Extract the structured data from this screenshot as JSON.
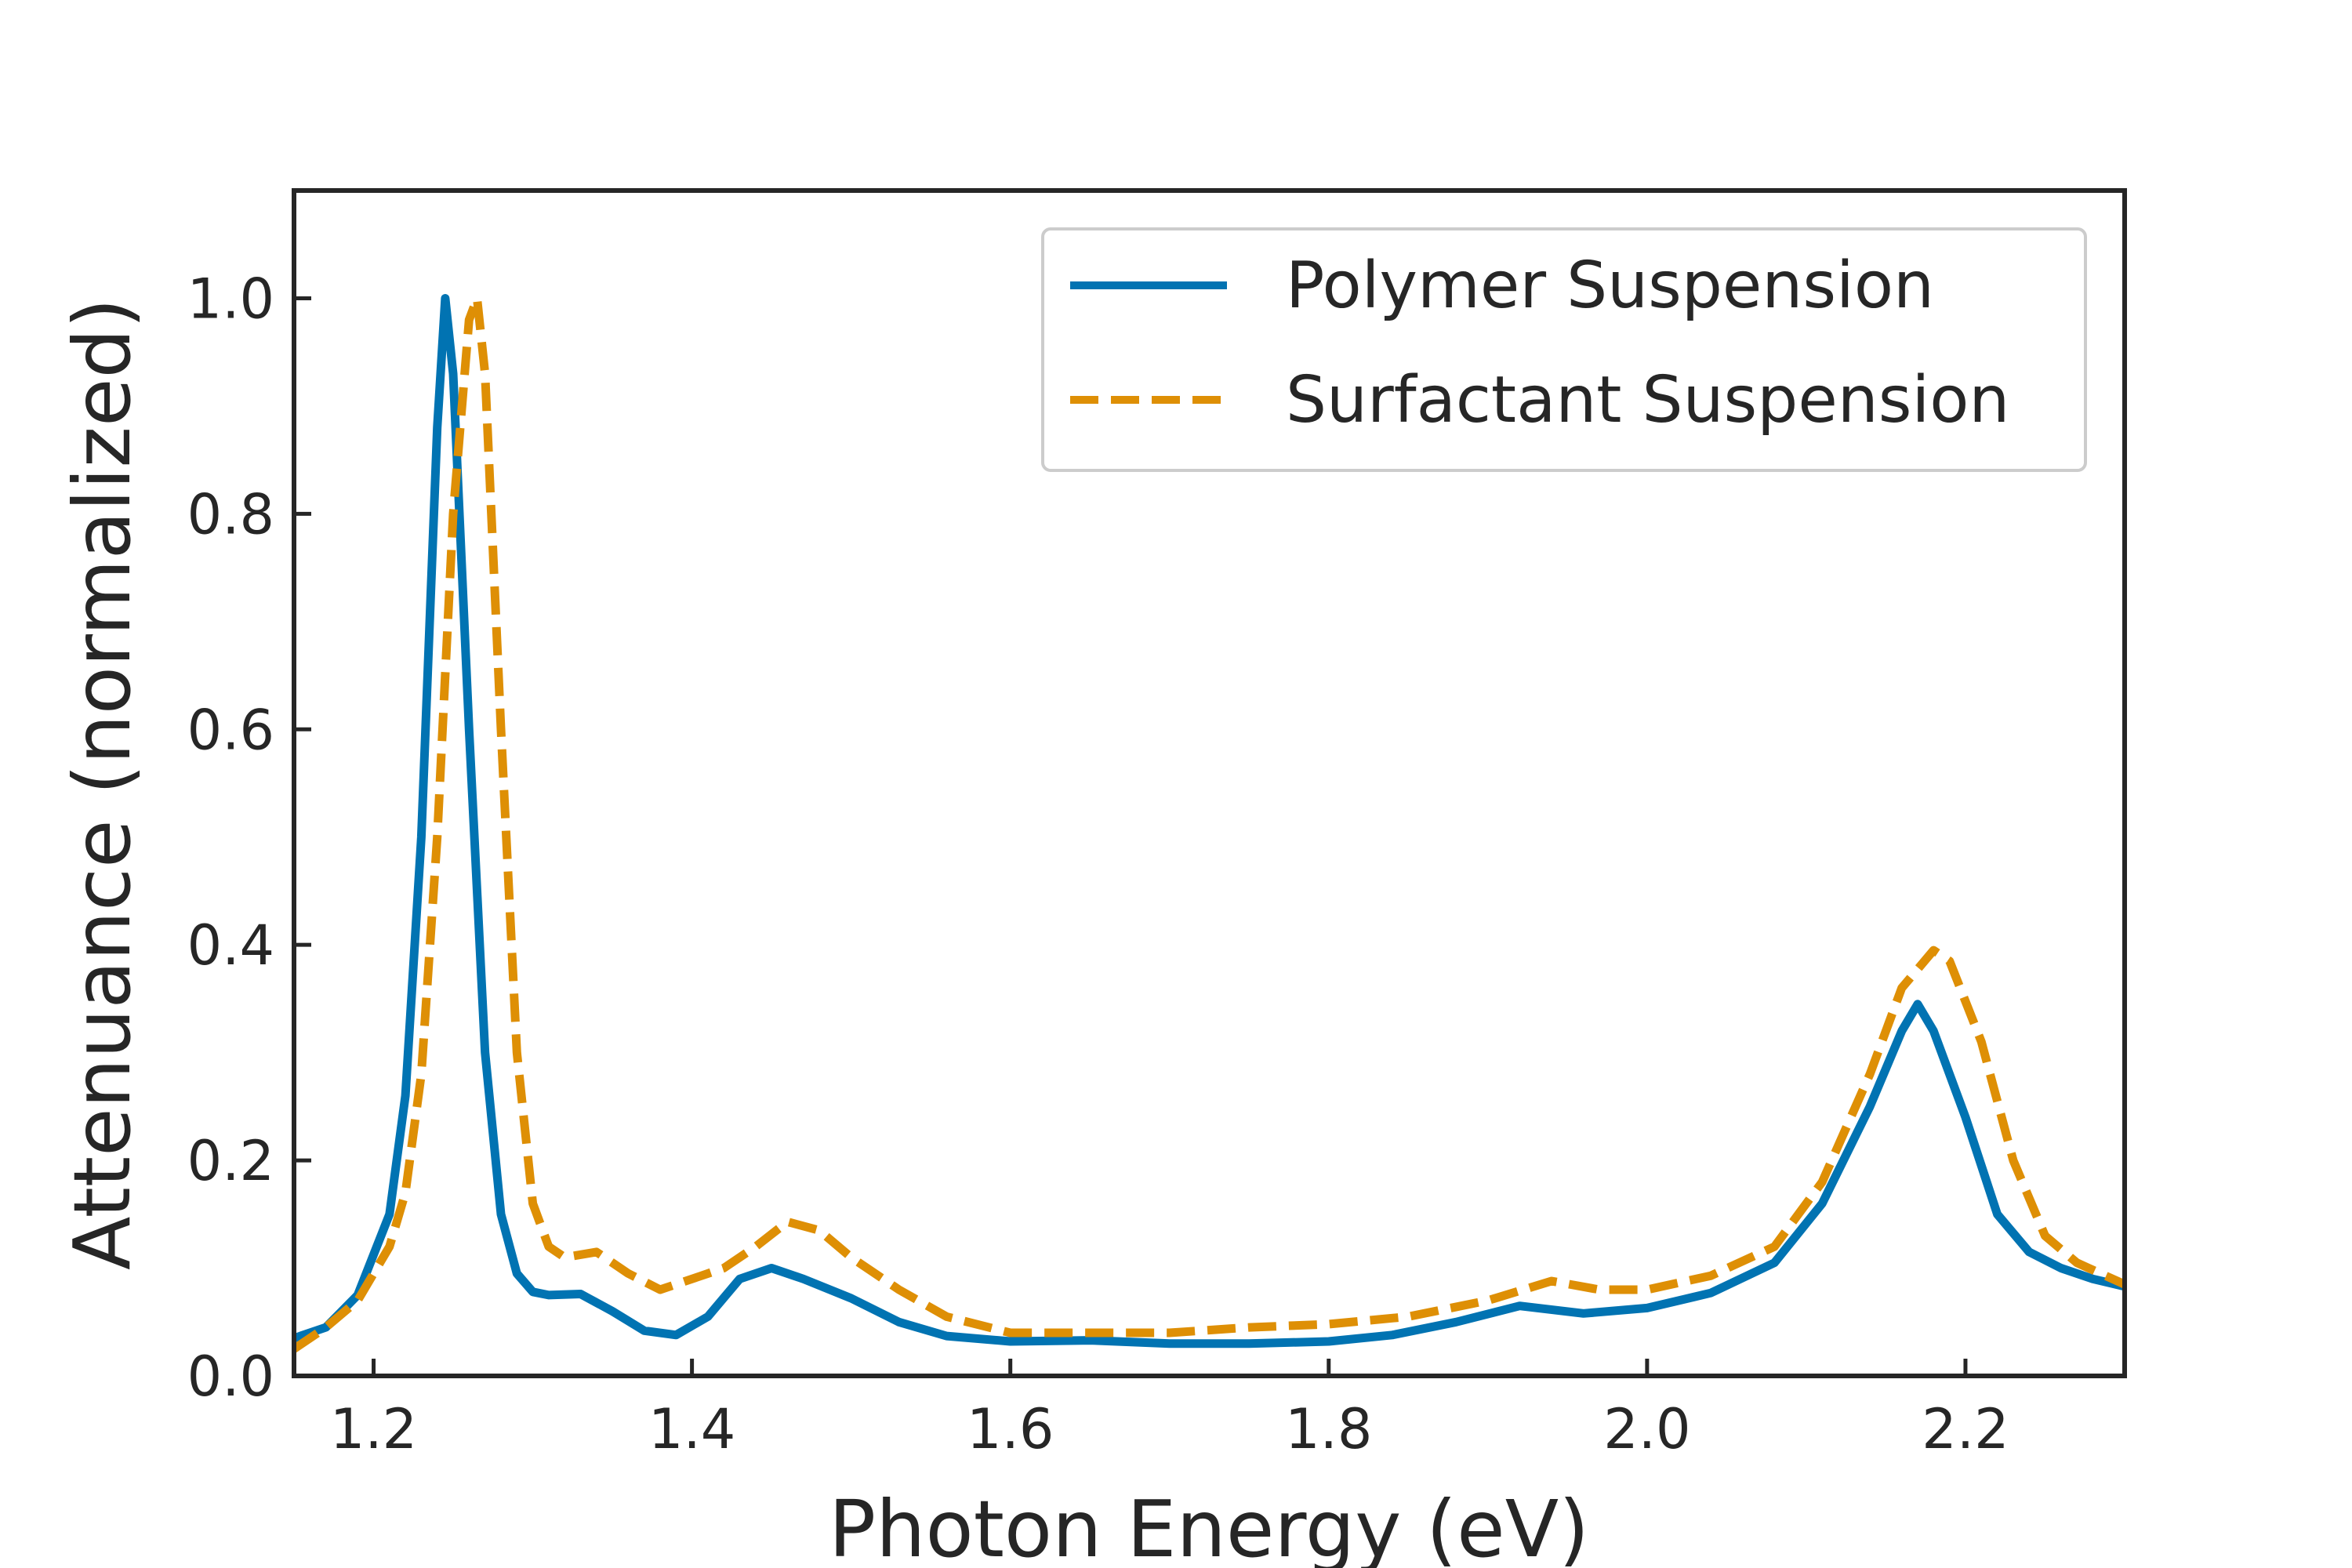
{
  "chart_data": {
    "type": "line",
    "title": "",
    "xlabel": "Photon Energy (eV)",
    "ylabel": "Attenuance (normalized)",
    "xlim": [
      1.15,
      2.3
    ],
    "ylim": [
      0.0,
      1.1
    ],
    "xticks": [
      1.2,
      1.4,
      1.6,
      1.8,
      2.0,
      2.2
    ],
    "xtick_labels": [
      "1.2",
      "1.4",
      "1.6",
      "1.8",
      "2.0",
      "2.2"
    ],
    "yticks": [
      0.0,
      0.2,
      0.4,
      0.6,
      0.8,
      1.0
    ],
    "ytick_labels": [
      "0.0",
      "0.2",
      "0.4",
      "0.6",
      "0.8",
      "1.0"
    ],
    "grid": false,
    "legend_position": "top-right",
    "series": [
      {
        "name": "Polymer Suspension",
        "color": "#0173b2",
        "style": "solid",
        "points": [
          [
            1.15,
            0.035
          ],
          [
            1.17,
            0.045
          ],
          [
            1.19,
            0.075
          ],
          [
            1.21,
            0.15
          ],
          [
            1.22,
            0.26
          ],
          [
            1.23,
            0.5
          ],
          [
            1.24,
            0.88
          ],
          [
            1.245,
            1.0
          ],
          [
            1.25,
            0.93
          ],
          [
            1.26,
            0.6
          ],
          [
            1.27,
            0.3
          ],
          [
            1.28,
            0.15
          ],
          [
            1.29,
            0.095
          ],
          [
            1.3,
            0.078
          ],
          [
            1.31,
            0.075
          ],
          [
            1.33,
            0.076
          ],
          [
            1.35,
            0.06
          ],
          [
            1.37,
            0.042
          ],
          [
            1.39,
            0.038
          ],
          [
            1.41,
            0.055
          ],
          [
            1.43,
            0.09
          ],
          [
            1.45,
            0.1
          ],
          [
            1.47,
            0.09
          ],
          [
            1.5,
            0.072
          ],
          [
            1.53,
            0.05
          ],
          [
            1.56,
            0.037
          ],
          [
            1.6,
            0.032
          ],
          [
            1.65,
            0.033
          ],
          [
            1.7,
            0.03
          ],
          [
            1.75,
            0.03
          ],
          [
            1.8,
            0.032
          ],
          [
            1.84,
            0.038
          ],
          [
            1.88,
            0.05
          ],
          [
            1.92,
            0.065
          ],
          [
            1.96,
            0.058
          ],
          [
            2.0,
            0.063
          ],
          [
            2.04,
            0.077
          ],
          [
            2.08,
            0.105
          ],
          [
            2.11,
            0.16
          ],
          [
            2.14,
            0.25
          ],
          [
            2.16,
            0.32
          ],
          [
            2.17,
            0.345
          ],
          [
            2.18,
            0.32
          ],
          [
            2.2,
            0.24
          ],
          [
            2.22,
            0.15
          ],
          [
            2.24,
            0.115
          ],
          [
            2.26,
            0.1
          ],
          [
            2.28,
            0.09
          ],
          [
            2.3,
            0.083
          ]
        ]
      },
      {
        "name": "Surfactant Suspension",
        "color": "#de8f05",
        "style": "dashed",
        "points": [
          [
            1.15,
            0.025
          ],
          [
            1.17,
            0.045
          ],
          [
            1.19,
            0.07
          ],
          [
            1.21,
            0.12
          ],
          [
            1.22,
            0.17
          ],
          [
            1.23,
            0.28
          ],
          [
            1.24,
            0.5
          ],
          [
            1.25,
            0.8
          ],
          [
            1.26,
            0.98
          ],
          [
            1.265,
            1.0
          ],
          [
            1.27,
            0.93
          ],
          [
            1.28,
            0.6
          ],
          [
            1.29,
            0.3
          ],
          [
            1.3,
            0.16
          ],
          [
            1.31,
            0.12
          ],
          [
            1.32,
            0.11
          ],
          [
            1.34,
            0.115
          ],
          [
            1.36,
            0.095
          ],
          [
            1.38,
            0.08
          ],
          [
            1.4,
            0.09
          ],
          [
            1.42,
            0.1
          ],
          [
            1.44,
            0.12
          ],
          [
            1.46,
            0.143
          ],
          [
            1.48,
            0.135
          ],
          [
            1.5,
            0.11
          ],
          [
            1.53,
            0.08
          ],
          [
            1.56,
            0.055
          ],
          [
            1.6,
            0.04
          ],
          [
            1.65,
            0.04
          ],
          [
            1.7,
            0.04
          ],
          [
            1.75,
            0.045
          ],
          [
            1.8,
            0.048
          ],
          [
            1.85,
            0.055
          ],
          [
            1.9,
            0.07
          ],
          [
            1.94,
            0.088
          ],
          [
            1.97,
            0.08
          ],
          [
            2.0,
            0.08
          ],
          [
            2.04,
            0.093
          ],
          [
            2.08,
            0.12
          ],
          [
            2.11,
            0.18
          ],
          [
            2.14,
            0.28
          ],
          [
            2.16,
            0.36
          ],
          [
            2.18,
            0.395
          ],
          [
            2.19,
            0.385
          ],
          [
            2.21,
            0.31
          ],
          [
            2.23,
            0.2
          ],
          [
            2.25,
            0.13
          ],
          [
            2.27,
            0.105
          ],
          [
            2.3,
            0.085
          ]
        ]
      }
    ]
  }
}
